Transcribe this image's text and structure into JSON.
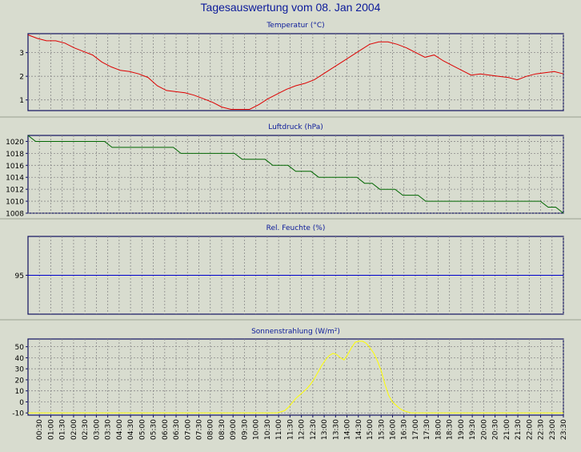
{
  "page": {
    "title": "Tagesauswertung vom 08. Jan 2004"
  },
  "colors": {
    "background": "#d8dccf",
    "title": "#0b1a9a",
    "axis": "#101060",
    "grid": "#8a8a8a",
    "separator": "#9aa090"
  },
  "time_labels": [
    "00:30",
    "01:00",
    "01:30",
    "02:00",
    "02:30",
    "03:00",
    "03:30",
    "04:00",
    "04:30",
    "05:00",
    "05:30",
    "06:00",
    "06:30",
    "07:00",
    "07:30",
    "08:00",
    "08:30",
    "09:00",
    "09:30",
    "10:00",
    "10:30",
    "11:00",
    "11:30",
    "12:00",
    "12:30",
    "13:00",
    "13:30",
    "14:00",
    "14:30",
    "15:00",
    "15:30",
    "16:00",
    "16:30",
    "17:00",
    "17:30",
    "18:00",
    "18:30",
    "19:00",
    "19:30",
    "20:00",
    "20:30",
    "21:00",
    "21:30",
    "22:00",
    "22:30",
    "23:00",
    "23:30"
  ],
  "chart_data": [
    {
      "type": "line",
      "title": "Temperatur (°C)",
      "xlabel": "",
      "ylabel": "",
      "ylim": [
        0.55,
        3.8
      ],
      "yticks": [
        1,
        2,
        3
      ],
      "grid": true,
      "series": [
        {
          "color": "#dd0000",
          "values": [
            3.75,
            3.6,
            3.5,
            3.5,
            3.4,
            3.2,
            3.05,
            2.9,
            2.6,
            2.4,
            2.25,
            2.2,
            2.1,
            1.95,
            1.6,
            1.4,
            1.35,
            1.3,
            1.2,
            1.05,
            0.9,
            0.7,
            0.6,
            0.6,
            0.6,
            0.8,
            1.05,
            1.25,
            1.45,
            1.6,
            1.7,
            1.85,
            2.1,
            2.35,
            2.6,
            2.85,
            3.1,
            3.35,
            3.45,
            3.45,
            3.35,
            3.2,
            3.0,
            2.8,
            2.9,
            2.65,
            2.45,
            2.25,
            2.05,
            2.1,
            2.05,
            2.0,
            1.95,
            1.85,
            2.0,
            2.1,
            2.15,
            2.2,
            2.1
          ]
        }
      ]
    },
    {
      "type": "line",
      "title": "Luftdruck (hPa)",
      "xlabel": "",
      "ylabel": "",
      "ylim": [
        1008,
        1021
      ],
      "yticks": [
        1008,
        1010,
        1012,
        1014,
        1016,
        1018,
        1020
      ],
      "grid": true,
      "series": [
        {
          "color": "#006600",
          "values": [
            1021,
            1020,
            1020,
            1020,
            1020,
            1020,
            1020,
            1020,
            1020,
            1020,
            1020,
            1019,
            1019,
            1019,
            1019,
            1019,
            1019,
            1019,
            1019,
            1019,
            1018,
            1018,
            1018,
            1018,
            1018,
            1018,
            1018,
            1018,
            1017,
            1017,
            1017,
            1017,
            1016,
            1016,
            1016,
            1015,
            1015,
            1015,
            1014,
            1014,
            1014,
            1014,
            1014,
            1014,
            1013,
            1013,
            1012,
            1012,
            1012,
            1011,
            1011,
            1011,
            1010,
            1010,
            1010,
            1010,
            1010,
            1010,
            1010,
            1010,
            1010,
            1010,
            1010,
            1010,
            1010,
            1010,
            1010,
            1010,
            1009,
            1009,
            1008
          ]
        }
      ]
    },
    {
      "type": "line",
      "title": "Rel. Feuchte (%)",
      "xlabel": "",
      "ylabel": "",
      "ylim": [
        90,
        100
      ],
      "yticks": [
        95
      ],
      "grid": true,
      "series": [
        {
          "color": "#0000cc",
          "values": [
            95,
            95
          ]
        }
      ]
    },
    {
      "type": "line",
      "title": "Sonnenstrahlung (W/m²)",
      "xlabel": "",
      "ylabel": "",
      "ylim": [
        -12,
        57
      ],
      "yticks": [
        -10,
        0,
        10,
        20,
        30,
        40,
        50
      ],
      "grid": true,
      "series": [
        {
          "color": "#ffff00",
          "values": [
            -10,
            -10,
            -10,
            -10,
            -10,
            -10,
            -10,
            -10,
            -10,
            -10,
            -10,
            -10,
            -10,
            -10,
            -10,
            -10,
            -10,
            -10,
            -10,
            -10,
            -10,
            -10,
            -10,
            -10,
            -10,
            -10,
            -10,
            -10,
            -10,
            -10,
            -10,
            -10,
            -10,
            -10,
            -10,
            -10,
            -10,
            -10,
            -10,
            -10,
            -10,
            -10,
            -10,
            -10,
            -10,
            -10,
            -10,
            -10,
            -10,
            -10,
            -10,
            -10,
            -10,
            -10,
            -10,
            -10,
            -10,
            -10,
            -10,
            -10,
            -10,
            -10,
            -10,
            -10,
            -10,
            -10,
            -10,
            -10,
            -9,
            -8,
            -5,
            -1,
            3,
            6,
            9,
            12,
            16,
            21,
            27,
            33,
            38,
            42,
            44,
            43,
            40,
            38,
            43,
            49,
            54,
            55,
            55,
            53,
            49,
            44,
            37,
            28,
            16,
            6,
            0,
            -3,
            -6,
            -8,
            -9,
            -10,
            -10,
            -10,
            -10,
            -10,
            -10,
            -10,
            -10,
            -10,
            -10,
            -10,
            -10,
            -10,
            -10,
            -10,
            -10,
            -10,
            -10,
            -10,
            -10,
            -10,
            -10,
            -10,
            -10,
            -10,
            -10,
            -10,
            -10,
            -10,
            -10,
            -10,
            -10,
            -10,
            -10,
            -10,
            -10,
            -10,
            -10,
            -10,
            -10,
            -10,
            -10
          ]
        }
      ]
    }
  ]
}
